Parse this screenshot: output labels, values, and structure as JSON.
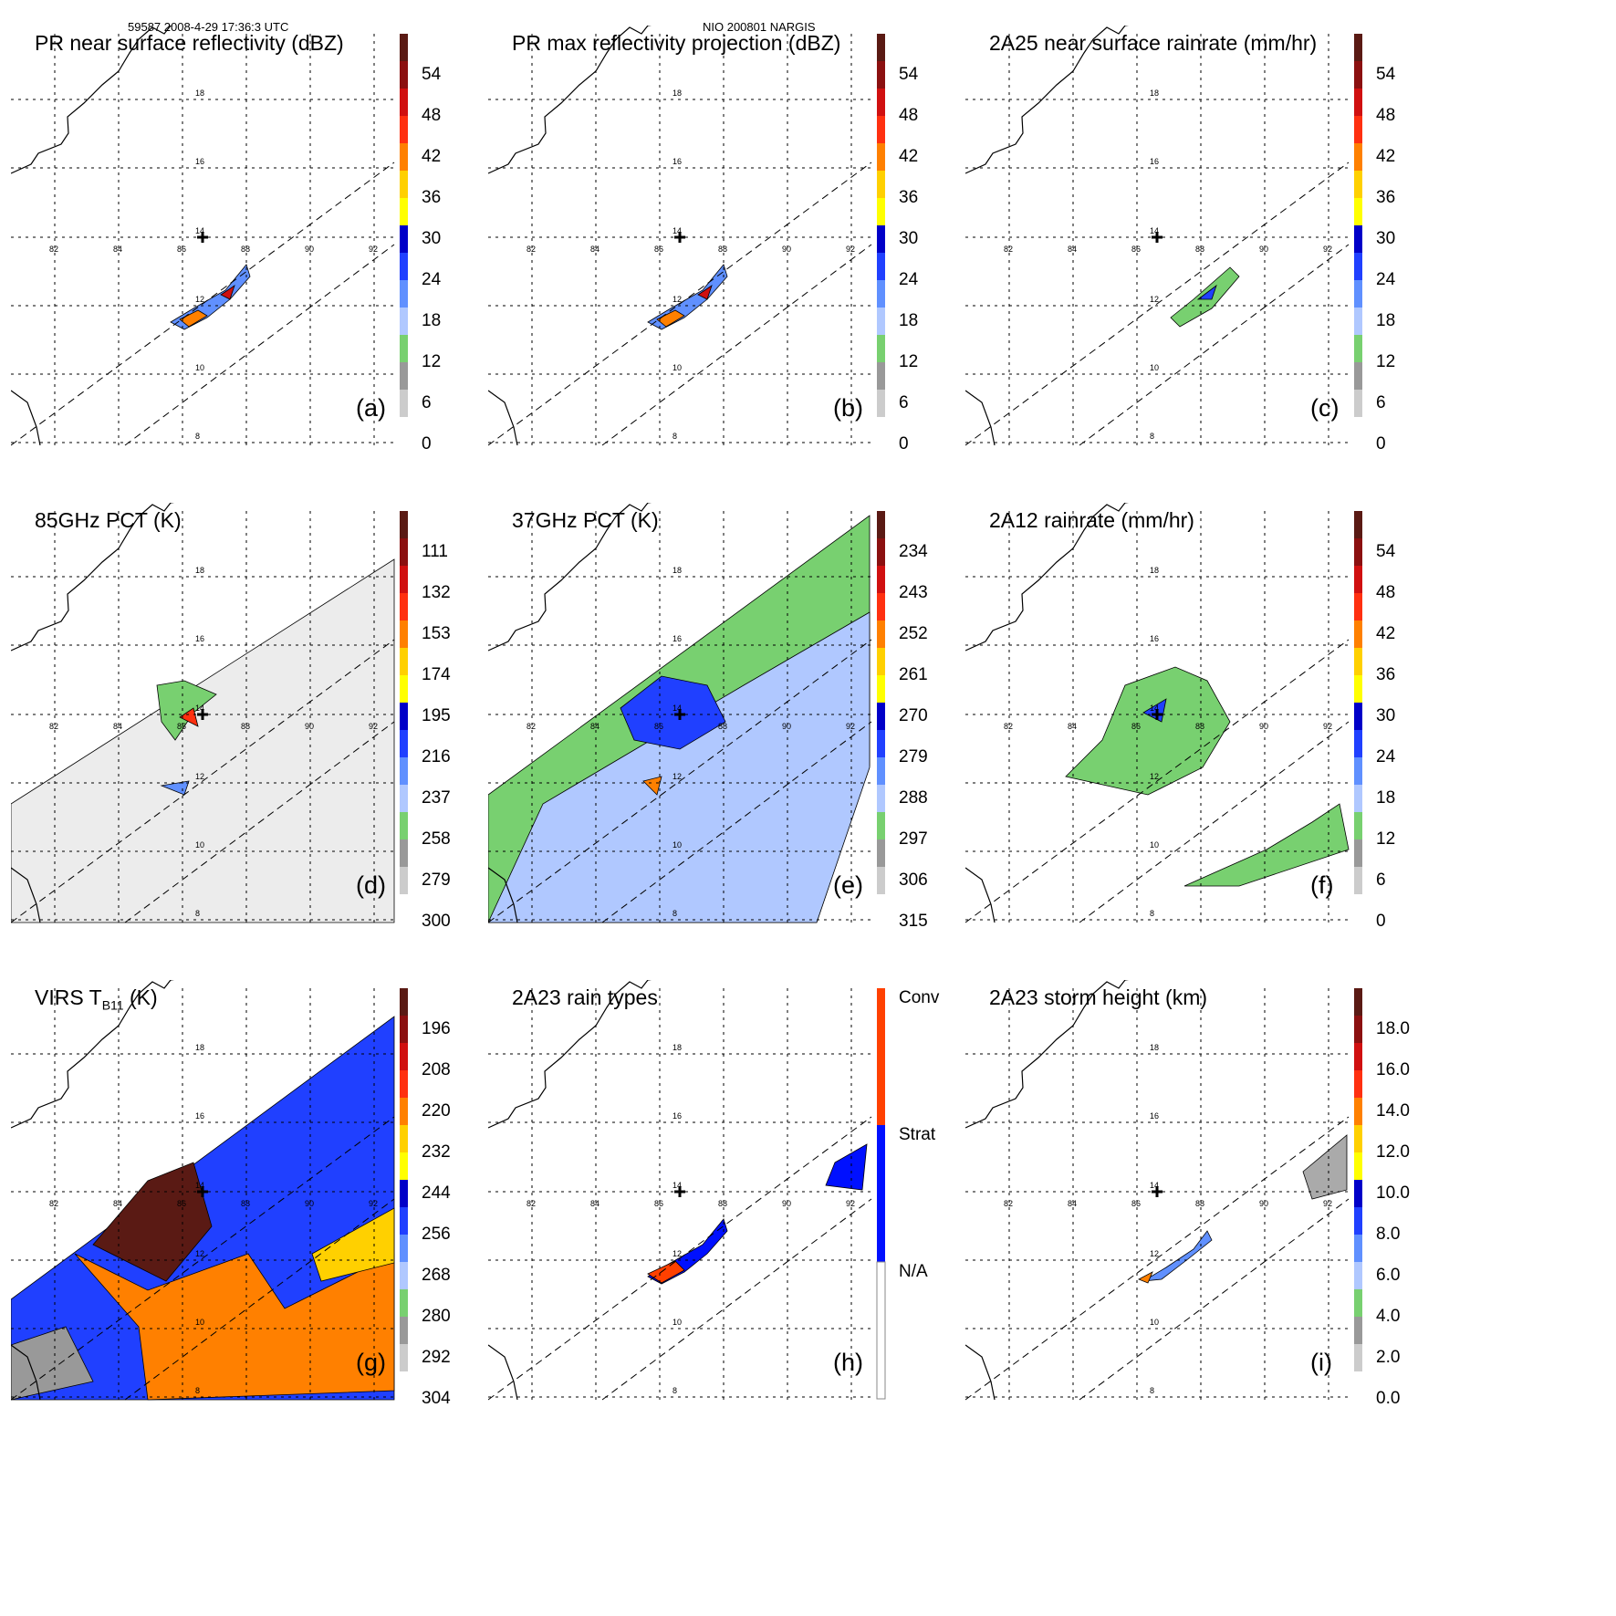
{
  "header": {
    "left": "59587 2008-4-29 17:36:3 UTC",
    "center": "NIO 200801 NARGIS"
  },
  "lat_labels": [
    "18",
    "16",
    "14",
    "12",
    "10",
    "8"
  ],
  "lon_labels": [
    "82",
    "84",
    "86",
    "88",
    "90",
    "92"
  ],
  "panels": [
    {
      "title": "PR near surface reflectivity (dBZ)",
      "letter": "(a)",
      "ticks": [
        "54",
        "48",
        "42",
        "36",
        "30",
        "24",
        "18",
        "12",
        "6",
        "0"
      ],
      "kind": "pr"
    },
    {
      "title": "PR max reflectivity projection (dBZ)",
      "letter": "(b)",
      "ticks": [
        "54",
        "48",
        "42",
        "36",
        "30",
        "24",
        "18",
        "12",
        "6",
        "0"
      ],
      "kind": "pr"
    },
    {
      "title": "2A25 near surface rainrate (mm/hr)",
      "letter": "(c)",
      "ticks": [
        "54",
        "48",
        "42",
        "36",
        "30",
        "24",
        "18",
        "12",
        "6",
        "0"
      ],
      "kind": "rain"
    },
    {
      "title": "85GHz PCT (K)",
      "letter": "(d)",
      "ticks": [
        "111",
        "132",
        "153",
        "174",
        "195",
        "216",
        "237",
        "258",
        "279",
        "300"
      ],
      "kind": "pct85"
    },
    {
      "title": "37GHz PCT (K)",
      "letter": "(e)",
      "ticks": [
        "234",
        "243",
        "252",
        "261",
        "270",
        "279",
        "288",
        "297",
        "306",
        "315"
      ],
      "kind": "pct37"
    },
    {
      "title": "2A12 rainrate (mm/hr)",
      "letter": "(f)",
      "ticks": [
        "54",
        "48",
        "42",
        "36",
        "30",
        "24",
        "18",
        "12",
        "6",
        "0"
      ],
      "kind": "tmi"
    },
    {
      "title": "VIRS T",
      "title_sub": "B11",
      "title_end": " (K)",
      "letter": "(g)",
      "ticks": [
        "196",
        "208",
        "220",
        "232",
        "244",
        "256",
        "268",
        "280",
        "292",
        "304"
      ],
      "kind": "virs"
    },
    {
      "title": "2A23 rain types",
      "letter": "(h)",
      "ticks": [
        "Conv",
        "Strat",
        "N/A"
      ],
      "kind": "types"
    },
    {
      "title": "2A23 storm height (km)",
      "letter": "(i)",
      "ticks": [
        "18.0",
        "16.0",
        "14.0",
        "12.0",
        "10.0",
        "8.0",
        "6.0",
        "4.0",
        "2.0",
        "0.0"
      ],
      "kind": "height"
    }
  ],
  "colors": {
    "scale": [
      "#5a1a14",
      "#8b1010",
      "#d01010",
      "#ff3010",
      "#ff8000",
      "#ffd000",
      "#ffff00",
      "#0000c8",
      "#2040ff",
      "#6090ff",
      "#b0c8ff",
      "#78d070",
      "#999999",
      "#cccccc",
      "#ffffff"
    ],
    "conv": "#ff4000",
    "strat": "#0010ff"
  }
}
